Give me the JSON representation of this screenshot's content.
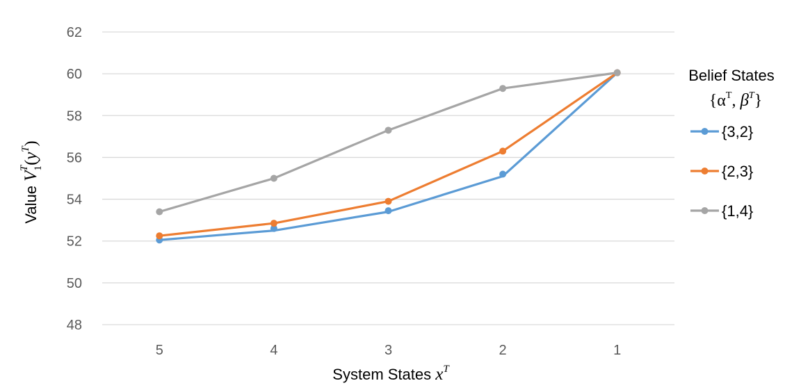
{
  "chart_data": {
    "type": "line",
    "categories": [
      "5",
      "4",
      "3",
      "2",
      "1"
    ],
    "xlabel_main": "System States ",
    "xlabel_var": "x",
    "xlabel_sup": "T",
    "ylabel_main": "Value ",
    "ylabel_V": "V",
    "ylabel_sub": "1",
    "ylabel_sup": "T",
    "ylabel_open": "(",
    "ylabel_y": "y",
    "ylabel_ysup": "T",
    "ylabel_close": ")",
    "ylim": [
      48,
      62
    ],
    "yticks": [
      "48",
      "50",
      "52",
      "54",
      "56",
      "58",
      "60",
      "62"
    ],
    "grid": true,
    "legend_position": "right",
    "legend_title_line1": "Belief States",
    "legend_title_line2": {
      "open": "{",
      "alpha": "α",
      "alpha_sup": "T",
      "comma": ", ",
      "beta": "β",
      "beta_sup": "T",
      "close": "}"
    },
    "series": [
      {
        "name": "{3,2}",
        "color": "#5B9BD5",
        "values": [
          52.05,
          52.6,
          53.45,
          55.2,
          60.05
        ],
        "line_values": [
          52.05,
          52.5,
          53.4,
          55.1,
          60.05
        ]
      },
      {
        "name": "{2,3}",
        "color": "#ED7D31",
        "values": [
          52.25,
          52.85,
          53.9,
          56.3,
          60.05
        ]
      },
      {
        "name": "{1,4}",
        "color": "#A5A5A5",
        "values": [
          53.4,
          55.0,
          57.3,
          59.3,
          60.05
        ]
      }
    ]
  }
}
